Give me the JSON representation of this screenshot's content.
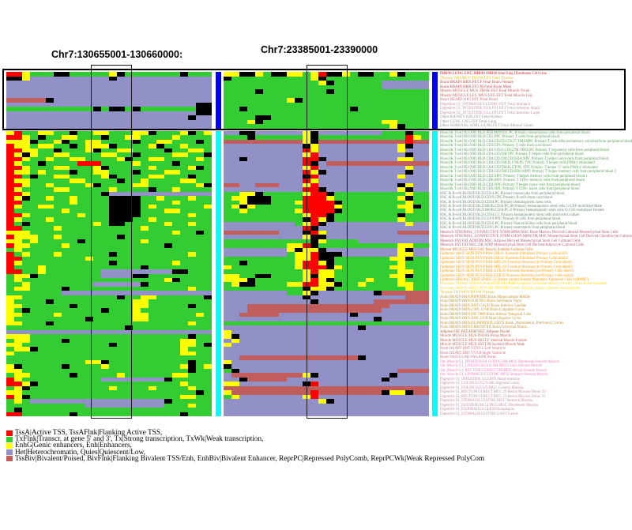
{
  "titles": {
    "left": "Chr7:130655001-130660000:",
    "right": "Chr7:23385001-23390000"
  },
  "legend": {
    "items": [
      {
        "color": "#FF0000",
        "text": "TssA|Active TSS, TssAFlnk|Flanking Active TSS,"
      },
      {
        "color": "#33CC33",
        "text": "TxFlnk|Transcr. at gene 5' and 3', Tx|Strong transcription, TxWk|Weak transcription,"
      },
      {
        "color": "#FFFF00",
        "text": "EnhG|Genic enhancers, Enh|Enhancers,"
      },
      {
        "color": "#9191C8",
        "text": "Het|Heterochromatin, Quies|Quiescent/Low,"
      },
      {
        "color": "#C05D5D",
        "text": "TssBiv|Bivalent/Poised, BivFlnk|Flanking Bivalent TSS/Enh, EnhBiv|Bivalent Enhancer, ReprPC|Repressed PolyComb, ReprPCWk|Weak Repressed PolyCom"
      }
    ]
  },
  "labels": {
    "top": [
      {
        "text": "IMR90 LUNG LNG.IMR90 IMR90 fetal lung fibroblasts Cell Line",
        "color": "#E41A1C"
      },
      {
        "text": "Thymus THYMUS THYM.FET Fetal Thymus",
        "color": "#DAB92E"
      },
      {
        "text": "Brain BRAIN BRN.FET.F Fetal Brain Female",
        "color": "#C0504D"
      },
      {
        "text": "Brain BRAIN BRN.FET.M Fetal Brain Male",
        "color": "#C0504D"
      },
      {
        "text": "Muscle MUSCLE MUS.TRNK.FET Fetal Muscle Trunk",
        "color": "#C2655D"
      },
      {
        "text": "Muscle MUSCLE.LEG MUS.LEG.FET Fetal Muscle Leg",
        "color": "#C2655D"
      },
      {
        "text": "Heart HEART HRT.FET Fetal Heart",
        "color": "#D56F80"
      },
      {
        "text": "Digestive GI_STOMACH GI.STMC.FET Fetal Stomach",
        "color": "#C58DAA"
      },
      {
        "text": "Digestive GI_INTESTINE GI.S.INT.FET Fetal Intestine Small",
        "color": "#C58DAA"
      },
      {
        "text": "Digestive GI_INTESTINE GI.L.INT.FET Fetal Intestine Large",
        "color": "#C58DAA"
      },
      {
        "text": "Other KIDNEY KID.FET Fetal Kidney",
        "color": "#999999"
      },
      {
        "text": "Other LUNG LNG.FET Fetal Lung",
        "color": "#999999"
      },
      {
        "text": "Other ADRENAL ADRL.GLND.FET Fetal Adrenal Gland",
        "color": "#999999"
      }
    ],
    "middle": [
      {
        "text": "Blood & T-cell BLOOD BLD.PER.MONUC.PC Primary mononuclear cells from peripheral blood",
        "color": "#55A354"
      },
      {
        "text": "Blood & T-cell BLOOD BLD.CD3.PPC Primary T cells from peripheral blood",
        "color": "#55A354"
      },
      {
        "text": "Blood & T-cell BLOOD BLD.CD4.CD25I.CD127.TMEMPC Primary T cells effector/memory enriched from peripheral blood",
        "color": "#55A354"
      },
      {
        "text": "Blood & T-cell BLOOD BLD.CD3.CPC Primary T cells from cord blood",
        "color": "#55A354"
      },
      {
        "text": "Blood & T-cell BLOOD BLD.CD4.CD25.CD127M.TREGPC Primary T regulatory cells from peripheral blood",
        "color": "#55A354"
      },
      {
        "text": "Blood & T-cell BLOOD BLD.CD4.CD25M.TPC Primary T helper cells from peripheral blood",
        "color": "#55A354"
      },
      {
        "text": "Blood & T-cell BLOOD BLD.CD4.CD25M.CD45RA.NPC Primary T helper naive cells from peripheral blood",
        "color": "#55A354"
      },
      {
        "text": "Blood & T-cell BLOOD BLD.CD4.CD25M.IL17M.PL.TPC Primary T helper cells PMA-I stimulated",
        "color": "#55A354"
      },
      {
        "text": "Blood & T-cell BLOOD BLD.CD4.CD25M.IL17P.PL.TPC Primary T helper 17 cells PMA-I stimulated",
        "color": "#55A354"
      },
      {
        "text": "Blood & T-cell BLOOD BLD.CD4.CD25M.CD45RO.MPC Primary T helper memory cells from peripheral blood 2",
        "color": "#55A354"
      },
      {
        "text": "Blood & T-cell BLOOD BLD.CD4.MPC Primary T helper memory cells from peripheral blood 1",
        "color": "#55A354"
      },
      {
        "text": "Blood & T-cell BLOOD BLD.CD8.MPC Primary T CD8+ memory cells from peripheral blood",
        "color": "#55A354"
      },
      {
        "text": "Blood & T-cell BLOOD BLD.CD4.NPC Primary T helper naive cells from peripheral blood",
        "color": "#55A354"
      },
      {
        "text": "Blood & T-cell BLOOD BLD.CD8.NPC Primary T CD8+ naive cells from peripheral blood",
        "color": "#55A354"
      },
      {
        "text": "HSC & B-cell BLOOD BLD.CD14.PC Primary monocytes from peripheral blood",
        "color": "#678C69"
      },
      {
        "text": "HSC & B-cell BLOOD BLD.CD19.CPC Primary B cells from cord blood",
        "color": "#678C69"
      },
      {
        "text": "HSC & B-cell BLOOD BLD.CD34.PC Primary hematopoietic stem cells",
        "color": "#678C69"
      },
      {
        "text": "HSC & B-cell BLOOD BLD.MOB.CD34.PC.M Primary hematopoietic stem cells G-CSF-mobilized Male",
        "color": "#678C69"
      },
      {
        "text": "HSC & B-cell BLOOD BLD.MOB.CD34.PC.F Primary hematopoietic stem cells G-CSF-mobilized Female",
        "color": "#678C69"
      },
      {
        "text": "HSC & B-cell BLOOD BLD.CD34.CC Primary hematopoietic stem cells short term culture",
        "color": "#678C69"
      },
      {
        "text": "HSC & B-cell BLOOD BLD.CD19.PPC Primary B cells from peripheral blood",
        "color": "#678C69"
      },
      {
        "text": "HSC & B-cell BLOOD BLD.CD56.PC Primary Natural Killer cells from peripheral blood",
        "color": "#678C69"
      },
      {
        "text": "HSC & B-cell BLOOD BLD.CD15.PC Primary neutrophils from peripheral blood",
        "color": "#678C69"
      },
      {
        "text": "Mesench STROMAL_CONNECTIVE STRM.MRW.MSC Bone Marrow Derived Cultured Mesenchymal Stem Cells",
        "color": "#B65C73"
      },
      {
        "text": "Mesench STROMAL_CONNECTIVE STRM.CHON.MRW.DR.MSC Mesenchymal Stem Cell Derived Chondrocyte Cultured Cells",
        "color": "#B65C73"
      },
      {
        "text": "Mesench FAT FAT.ADIP.DR.MSC Adipose Derived Mesenchymal Stem Cell Cultured Cells",
        "color": "#B65C73"
      },
      {
        "text": "Mesench FAT FAT.MSC.DR.ADIP Mesenchymal Stem Cell Derived Adipocyte Cultured Cells",
        "color": "#B65C73"
      },
      {
        "text": "Myosat MUSCLE MUS.SAT Muscle Satellite Cultured Cells",
        "color": "#E67326"
      },
      {
        "text": "Epithelial SKIN SKIN.PEN.FRSK.FIB.01 Foreskin Fibroblast Primary Cells skin01",
        "color": "#FF9D0C"
      },
      {
        "text": "Epithelial SKIN SKIN.PEN.FRSK.FIB.02 Foreskin Fibroblast Primary Cells skin02",
        "color": "#FF9D0C"
      },
      {
        "text": "Epithelial SKIN SKIN.PEN.FRSK.MEL.01 Foreskin Melanocyte Primary Cells skin01",
        "color": "#FF9D0C"
      },
      {
        "text": "Epithelial SKIN SKIN.PEN.FRSK.MEL.03 Foreskin Melanocyte Primary Cells skin03",
        "color": "#FF9D0C"
      },
      {
        "text": "Epithelial SKIN SKIN.PEN.FRSK.KER.02 Foreskin Keratinocyte Primary Cells skin02",
        "color": "#FF9D0C"
      },
      {
        "text": "Epithelial SKIN SKIN.PEN.FRSK.KER.03 Foreskin Keratinocyte Primary Cells skin03",
        "color": "#FF9D0C"
      },
      {
        "text": "Epithelial BREAST BRST.HMEC.35 Breast variant Human Mammary Epithelial Cells (vHMEC)",
        "color": "#FF9D0C"
      },
      {
        "text": "Neurosph BRAIN BRN.GANGEM.DR.NRSPHR Ganglion Eminence derived primary cultured neurospheres",
        "color": "#FFD924"
      },
      {
        "text": "Neurosph BRAIN BRN.CRTX.DR.NRSPHR Cortex derived primary cultured neurospheres",
        "color": "#FFD924"
      },
      {
        "text": "Thymus THYMUS THYM Thymus",
        "color": "#DAB92E"
      },
      {
        "text": "Brain BRAIN BRN.HIPP.MID Brain Hippocampus Middle",
        "color": "#C5912B"
      },
      {
        "text": "Brain BRAIN BRN.SUB.NIG Brain Substantia Nigra",
        "color": "#C5912B"
      },
      {
        "text": "Brain BRAIN BRN.ANT.CAUD Brain Anterior Caudate",
        "color": "#C5912B"
      },
      {
        "text": "Brain BRAIN BRN.CING.GYR Brain Cingulate Gyrus",
        "color": "#C5912B"
      },
      {
        "text": "Brain BRAIN BRN.INF.TMP Brain Inferior Temporal Lobe",
        "color": "#C5912B"
      },
      {
        "text": "Brain BRAIN BRN.ANG.GYR Brain Angular Gyrus",
        "color": "#C5912B"
      },
      {
        "text": "Brain BRAIN BRN.DL.PRFRNTL.CRTX Brain_Dorsolateral_Prefrontal_Cortex",
        "color": "#C5912B"
      },
      {
        "text": "Brain BRAIN BRN.GRM.MTRX Brain Germinal Matrix",
        "color": "#C5912B"
      },
      {
        "text": "Adipose FAT FAT.ADIP.NUC Adipose Nuclei",
        "color": "#AF5B39"
      },
      {
        "text": "Muscle MUSCLE MUS.PSOAS Psoas Muscle",
        "color": "#C2655D"
      },
      {
        "text": "Muscle MUSCLE MUS.SKLT.F Skeletal Muscle Female",
        "color": "#C2655D"
      },
      {
        "text": "Muscle MUSCLE MUS.SKLT.M Skeletal Muscle Male",
        "color": "#C2655D"
      },
      {
        "text": "Heart HEART HRT.VENT.L Left Ventricle",
        "color": "#D56F80"
      },
      {
        "text": "Heart HEART HRT.VNT.R Right Ventricle",
        "color": "#D56F80"
      },
      {
        "text": "Heart VASCULAR VAS.AOR Aorta",
        "color": "#D56F80"
      },
      {
        "text": "Sm. Muscle GI_DUODENUM GI.DUO.SM.MUS Duodenum Smooth Muscle",
        "color": "#F182BC"
      },
      {
        "text": "Sm. Muscle GI_COLON GI.CLN.SM.MUS Colon Smooth Muscle",
        "color": "#F182BC"
      },
      {
        "text": "Sm. Muscle GI_RECTUM GI.RECT.SM.MUS Rectal Smooth Muscle",
        "color": "#F182BC"
      },
      {
        "text": "Sm. Muscle GI_STOMACH GI.STMC.MUS Stomach Smooth Muscle",
        "color": "#F182BC"
      },
      {
        "text": "Digestive GI_INTESTINE GI.S.INT Small Intestine",
        "color": "#C58DAA"
      },
      {
        "text": "Digestive GI_COLON GI.CLN.SIG Sigmoid Colon",
        "color": "#C58DAA"
      },
      {
        "text": "Digestive GI_COLON GI.CLN.MUC Colonic Mucosa",
        "color": "#C58DAA"
      },
      {
        "text": "Digestive GI_RECTUM GI.RECT.MUC.29 Rectal Mucosa Donor 29",
        "color": "#C58DAA"
      },
      {
        "text": "Digestive GI_RECTUM GI.RECT.MUC.31 Rectal Mucosa Donor 31",
        "color": "#C58DAA"
      },
      {
        "text": "Digestive GI_STOMACH GI.STMC.MUC Stomach Mucosa",
        "color": "#C58DAA"
      },
      {
        "text": "Digestive GI_DUODENUM GI.DUO.MUC Duodenum Mucosa",
        "color": "#C58DAA"
      },
      {
        "text": "Digestive GI_ESOPHAGUS GI.ESO Esophagus",
        "color": "#C58DAA"
      },
      {
        "text": "Digestive GI_STOMACH GI.STMC.GAST Gastric",
        "color": "#C58DAA"
      }
    ]
  },
  "separators": {
    "top_color": "#0000FF",
    "middle_color": "#00FFFF"
  },
  "chart_data": {
    "type": "heatmap",
    "title_left_region": "Chr7:130655001-130660000",
    "title_right_region": "Chr7:23385001-23390000",
    "legend_position": "bottom-left",
    "state_colors": {
      "G": "#33CC33",
      "Y": "#FFFF00",
      "R": "#FF0000",
      "B": "#000000",
      "Q": "#9191C8",
      "V": "#C05D5D"
    },
    "state_meaning": {
      "R": "TssA/TssAFlnk active TSS",
      "G": "TxFlnk/Tx/TxWk transcription",
      "Y": "EnhG/Enh enhancers",
      "Q": "Het/Quies quiescent",
      "V": "TssBiv/BivFlnk/EnhBiv/ReprPC bivalent or repressed",
      "B": "other/dense state"
    },
    "panels": {
      "left_top": [
        "RRYGGGBBGGGGGYBGGGGGGGBGGG",
        "BBYQQQQQQQQQQBQQQQQQQQQQQQ",
        "QQQQQQQQQQQQQQQQQQQQQQQQQQ",
        "QQQQQQQQQQQQQQQQQQQQQQQQQQ",
        "QQQQQQQQQQQQQQQQQQQQQQQQQQ",
        "QQQQQQQQQQQQQQQQQQQQQQQQQQ",
        "VVVVVBQQQQQQQQQQQQQQQQQQQQ",
        "QQQQQQQQQQQQQQQQQQQQQQQQBB",
        "GGGGGGGGGGGBGBBGBGGGGGGGBB",
        "QQQQQQQQQQQQQQQQQQQQQQQQBB",
        "QQQQQQQQQQQQQQQQQQQQQQQBQQ",
        "QQQQQQQQQQQQQQQQQQQQQQQQQQ",
        "QQQQQQQQQQQQQQQQQQQQQQQQQQ"
      ],
      "right_top": [
        "YYBBYGBBYYGYRBBYGBBGGYBGGG",
        "BGGGGGGGGGGYBGGGGGGGGGGGGG",
        "GGGGGGGGGGGGYBGGGGGGQQQQQQ",
        "GGGGGGGGGGGGGGGGGGGGQQQQQQ",
        "GGGGBGGGGGGGGBGGGGGGGGGGGG",
        "GGGGGGGGGGGGGGGGGGGGGGGGGG",
        "GGGGGGGGYBGGGGGGGGGGGGGGGG",
        "GGGGGGGGGGGGGGGGGGGGGGGGGG",
        "GGBGGGGGGGGGGGGGBGGGGGGGGG",
        "GGGGGGGGGGGGGGGGGGGGGGGGGG",
        "GGGGBBGGGGGGGGGGGGGGGGGGGG",
        "GGGYBGGGGGGGGGGGGGGGYYGGGG",
        "GGGGGGGGGGGGGGGGGGGGGYBGGG"
      ],
      "left_middle": [
        "YRGGYYGGBGGYYGGGYYBGGGYBGY",
        "RRYGBGGYYGGGBGGYYGGGGYGGGG",
        "YYYBGGYBGGYYGGGGBGGYYGGGBG",
        "RYYGYYGGBGYYYBGGGGYBGGYGGG",
        "RRYYGGBGGGYBGGYYGGGGBGGYYG",
        "RYBYGGYYGGGGYYGGBGGGGYYGGB",
        "RRYGGYGGYYGGGGYBGGYYGGGGYG",
        "RYGGBGGGGRRRGGGGYGGGGBGGGG",
        "RRYGGGYYGGGYBGGGGGYGGGGYBG",
        "RYYGYGGGBGGYYGGGBGGGYYGGGG",
        "RRGBGGYYGGGGYBGGGGYYGGGBGG",
        "RYYGGGGGYYGGGGBGGYGGGGYYGG",
        "RRYGGYGGGGYBGGGGYYGGGGGGYB",
        "RYGGGGYYGGGGGYGGGGBGGYGGGG",
        "RRYGGGGGGGGGBQQQQQQQQQQQQQ",
        "RYBGGYGGYGGGGBBBBGGYGGGYGG",
        "RRGGGGGGYGGGGBBBBGGGGYGGGG",
        "RYGGYYGGGGGGGBBBBGYGGGGGGY",
        "RGGGGGGYGGGGGBBBBGGGYYGGGG",
        "RRYGGGGGGYGGGBBBBGGGGGGYGG",
        "RYGGGYGGGGGGGBBBGGYGGGGGGG",
        "RGBGGGGGGGGYGBBGGGGGYGGYGG",
        "RRGGGGYGGGGGGGGGGYGGGGGGGG",
        "YYYGGGGGGGGGGGGGGGGGGYGGBG",
        "RYYYGGYGGGGGGGBGGGGGGGGGGG",
        "YYGYGGGGGBGGGGGGGYGGGGGGGG",
        "RYYGGGGYGGGGGGGGGGGGBGGGGG",
        "GYGGGGGGGGGGGGGGGGGGGGGGGG",
        "RGYGGGYGGGGGGBGGGGGGGGGYGG",
        "RRGGGGGGGGYGGGGGGGGGGGGGGG",
        "RYGGGGGGGGGGGBGGGGGGGYGGGG",
        "RGGGYGGGGGGGGGGGGBGGGGGGGG",
        "RRGGYGGGGGGGQQQQQQQQQBBGGG",
        "GYYBGGGGGGGGQQQQBBGGGGGGGG",
        "GYGGGGGGGGGGGGGGGGGGYBGGGG",
        "GGYGGGGGGGGQQQQQQBGGGGGGGG",
        "GYYGGGGBGGGGGGGGGGGGGGGYGG",
        "GGGGGGGQQQQQQQQQQQQQQQQQQQ",
        "YYGGGGGGGGGGGGBGGYYGGGGGGB",
        "YGGGGBGGGGGGGGGGYYGGGGGGGG",
        "YYGGGGGGBGGGGGGGYYGGGGGBGG",
        "YGBGGGGGGGGGBGGGYGGGGGGGGG",
        "YYGGGGYGGGGGGGGGYYGGGGGGYG",
        "YGGGGGGGGGBGGGGGYYGGGGGGGG",
        "YYGGGBGGGGGGGGGGGGGGGGGYGG",
        "GGGGGGGGGGGGGGGBGGGGGGGGGG",
        "QQQQQQQQQQQQQQQQQQQQQQQQQQ",
        "YYYGGGGGGGGGGGGGGGGGGGGBGG",
        "GYYGGGGBGGGGGGGGGGGGGGYYGG",
        "YYGGGGGGGGGGGBGGGGGGGGYYGB",
        "GYYBGGGGGGGGGGGGGGGGGGYGGG",
        "YGGGGGGGGGGGGGGGGGGGGGYYGG",
        "GGGGGGGGGGGGGGGGGGGGGGGGGG",
        "GGGGGGGGGGYYBGGGGGGGGGGBGG",
        "YBGGGGGBGGGGYGGGGGGGGGYBGY",
        "YYGGGGGGGGGGGGGGGGGGGGGBGG",
        "GYYGGGGGBGGGGGYGGGGGGYYGGG",
        "RYGGGGGGGGGGQQQQQQQQBGGGGG",
        "RRYBGGGGGGGGGGGGGGGGGGYGGG",
        "GYBGGGGGGGGGGYGGGGYGGGGYGG",
        "YYGGGGGGGGGGGGGGGGGGGGGGBG",
        "RYBGGGGGGGGGGGGGGGGGGGYYGG",
        "GYGQQQQQQQQQQQQQQQQQBGGGGG",
        "GGGGGGGGGGQQQQQQQQQQGGGYGG",
        "GBGGGGGGGGGGGGGGGGGGGGGGGG",
        "RRGGGGGGBGGGGGGGGGGGGGBGGG"
      ],
      "right_middle": [
        "QQBBQQQQQQYBQQQQQQQQGGGBGG",
        "GGGBGGGGGGYBGGGGGGGGGGGRYG",
        "VVVVVVVVVVYBVVVVVVVVVVVRVV",
        "QQQQQQQQQQBYQQQQQQQQQQYBQQ",
        "QQQQQQQQQQRYQQQQQQQQQQYQQQ",
        "QQQQQQQQQQYRQQQQQQQQQQQBQQ",
        "QQBQQQQQQQRRBQQQQQQQQQYYQQ",
        "QQQQQQQQQQRBQVVVVVVVVVVVVV",
        "QQQQQQQQQQYRQQQQQQQQQQQYQQ",
        "QQQQQQQQQQRYBQQQQQQQQQQBQQ",
        "QQQQQQQQQQBRQQQQQQQQQQYQQQ",
        "QQQQQQQQQQRYQQQQQQQQQQQQQQ",
        "VVQQVVVQQQYRQQQQQQQQQQBYQQ",
        "QQQQQQQQQQRRBQQQQQQQQQYBQQ",
        "GGYYBGGGGGYRRBGGGGGGGGGYGG",
        "GYYBBBGGGGRRRYGGGGGGGGYBGG",
        "GGYBBBGGGYRRRRBGGGGGGGGYGG",
        "GYBYGGGGGGRRRRYGGGGGGGYYBG",
        "GGYGGGGGGYRRRRBGGGGGGGGYGG",
        "GGGGGGGGGGYRRBGGGGGGGGBGGG",
        "GGGGGGGGGGBRYBGGGGGGGGYGGG",
        "QQQQQQQQQGYRBQQQQQQQQQQYQQ",
        "QQQQQQQQQQRBQQQQQQQQQQQQQQ",
        "VVVVVVVQQQBRYQQQQQQQQQVVVV",
        "QQQQQQQQQQYBBQQQQQQQQQQQQQ",
        "GGGGGGGGGGGBYGGGGQQQQQQQQQ",
        "GGGGGGGGYYRBGGGGGGGGGGYYGG",
        "QQQQQQQQYBYYBQQQQQQQQQYBQQ",
        "QQQQQQQQGYYRBBBQQQQQQQYYQQ",
        "GGGGGGGGGYYRBBGGGGGGGYYBGG",
        "GGBGGGGGGYRRYBGGGGGGGGYGGG",
        "YGGGGGGGGYRRRBYGGGGGGYYGGG",
        "GGGGGGGGGGYRYYGGGGGGGGYYGG",
        "YYGGBBGGGGYBYYGGGGGGGYYBGG",
        "YYYBGGGGGGYRYBGGGGYGGGYGGG",
        "GYBBGGGGYYRRYYBGGYGGGGYYGG",
        "GGGGGGGGGGBYYBGGGGGGGGGYGG",
        "QQQQQQQQGGYBQQQQQQQBVVVVVV",
        "QQQQQQQQQQBQQQQQQQQQQQQVVV",
        "QQQQQQQQQQQBQQQQQQQVVVVVVV",
        "QQQVVVVVVVVVVVVVVVVVVQQQQQ",
        "QQQVVVVVVVVVVVVVVVVVQQQQQQ",
        "QQVVVVVQQQQQQQQQBQQQQQQQQQ",
        "QQQQQQQQQQQQQQQQQQQBQQQQQQ",
        "GGGGGGGGGGGGGGGGGGGGGGGGGG",
        "QQQQQQQQQQQQQQQQQBQQQQQQQQ",
        "YQQQQQQQQQQQQQQQQQQQQQQQQQ",
        "YBQQQQQQQQQQQQQQQQQQQQQQQQ",
        "QYQQQQQQQQQQQQQQQQQQQQQQQQ",
        "YQQQQQQQQQQQQQQQQQQQQQQQQQ",
        "QQQQQQQQQQQQQQQQQQQQQQQQQQ",
        "QQQQQQQQQQQQQQQQQQQQQQQQQQ",
        "QQVVVVVVVVVVVVVVVBQQQQQQQQ",
        "YQQQQQQQQQQQQQQQQQQQQQQQQQ",
        "BQQQQQQQQQQQQQQQQQQQQQQQQQ",
        "GBQQQQQQQQQQQQQQQQQQQQVVVV",
        "QVVVVVVVVVYBQQQQQQQQQBQQQQ",
        "QQBVVVVVQQQQQQQQQQQQBQQQQQ",
        "YYQQQQQQQQBRQQQQQQQQQQQQQQ",
        "VVVVVVVVVVVVVVVVVVVVVVVVVV",
        "YVVVVVVVVVVRVVVVVVVVBYYBVV",
        "GYQQQQQQQQYRQQQQQQQQQQQQQQ",
        "QQQQQQQQQQQQYBQQQQQQQQQQQQ",
        "QQQQQQQQQQQQQQQQQQQQQQQQQQ",
        "QQQQQQQQQQQQQQQQQQQQQQQQQQ",
        "QQQQQQQQQQQQQQQQQQQQQQQQQQ"
      ]
    }
  }
}
